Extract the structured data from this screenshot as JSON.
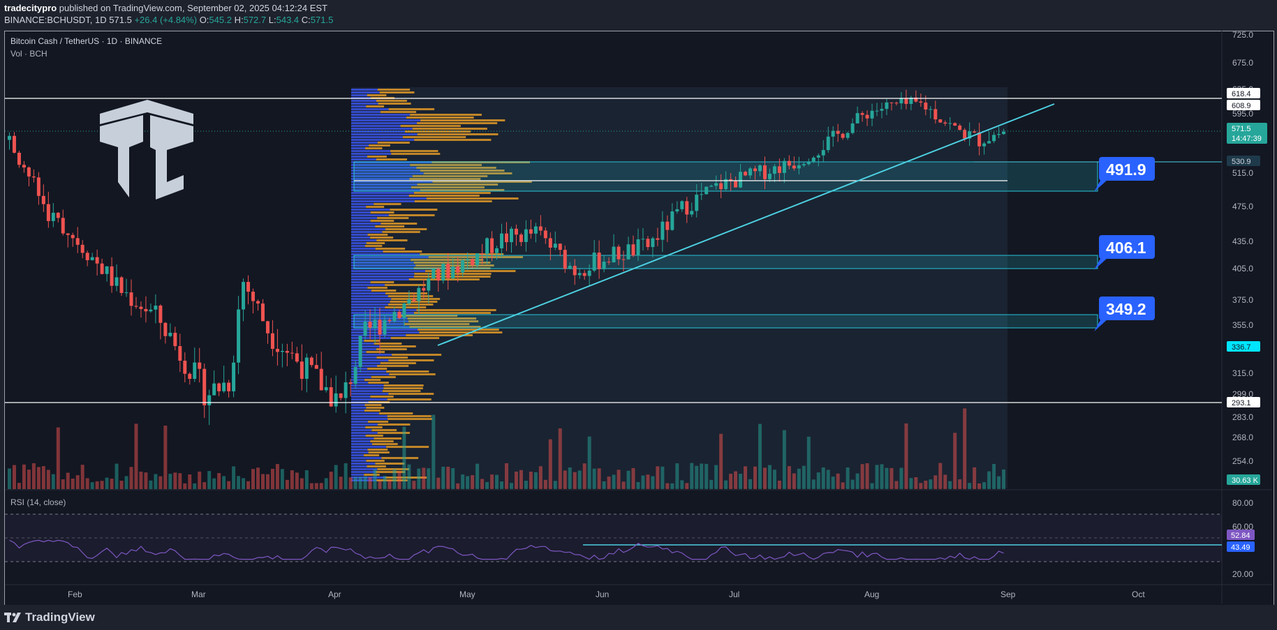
{
  "header": {
    "author": "tradecitypro",
    "published_text": " published on TradingView.com, September 02, 2025 04:12:24 EST",
    "symbol": "BINANCE:BCHUSDT, 1D",
    "last": "571.5",
    "change": "+26.4 (+4.84%)",
    "o_label": "O:",
    "o_value": "545.2",
    "h_label": "H:",
    "h_value": "572.7",
    "l_label": "L:",
    "l_value": "543.4",
    "c_label": "C:",
    "c_value": "571.5"
  },
  "legend": {
    "title": "Bitcoin Cash / TetherUS · 1D · BINANCE",
    "volume": "Vol · BCH",
    "rsi": "RSI (14, close)"
  },
  "price_axis": {
    "ticks": [
      "725.0",
      "675.0",
      "635.0",
      "595.0",
      "515.0",
      "475.0",
      "435.0",
      "405.0",
      "375.0",
      "355.0",
      "315.0",
      "299.0",
      "283.0",
      "268.0",
      "254.0"
    ],
    "tags": [
      {
        "label": "618.4",
        "bg": "#ffffff",
        "fg": "#131722"
      },
      {
        "label": "608.9",
        "bg": "#ffffff",
        "fg": "#131722"
      },
      {
        "label": "571.5",
        "bg": "#26a69a",
        "fg": "#ffffff",
        "sub": "14:47:39"
      },
      {
        "label": "530.9",
        "bg": "#1e3a4a",
        "fg": "#d1d4dc"
      },
      {
        "label": "336.7",
        "bg": "#00e5ff",
        "fg": "#131722"
      },
      {
        "label": "293.1",
        "bg": "#ffffff",
        "fg": "#131722"
      },
      {
        "label": "30.63 K",
        "bg": "#26a69a",
        "fg": "#ffffff"
      }
    ]
  },
  "rsi_axis": {
    "ticks": [
      "80.00",
      "60.00",
      "20.00"
    ],
    "tags": [
      {
        "label": "52.84",
        "bg": "#7e57c2",
        "fg": "#ffffff"
      },
      {
        "label": "43.49",
        "bg": "#2962ff",
        "fg": "#ffffff"
      }
    ]
  },
  "time_axis": [
    "Feb",
    "Mar",
    "Apr",
    "May",
    "Jun",
    "Jul",
    "Aug",
    "Sep",
    "Oct"
  ],
  "callouts": [
    "491.9",
    "406.1",
    "349.2"
  ],
  "footer": {
    "brand": "TradingView"
  },
  "colors": {
    "up": "#26a69a",
    "down": "#ef5350",
    "zone": "#26c6da",
    "trendline": "#4dd0e1",
    "callout": "#2962ff",
    "rsi": "#7e57c2"
  },
  "chart_data": {
    "type": "candlestick",
    "series_name": "Bitcoin Cash / TetherUS",
    "levels": [
      618.4,
      293.1
    ],
    "zones": [
      {
        "label": "491.9",
        "top": 530.9,
        "bottom": 491.9
      },
      {
        "label": "406.1",
        "top": 421,
        "bottom": 406.1
      },
      {
        "label": "349.2",
        "top": 362,
        "bottom": 349.2
      }
    ],
    "ohlc_sample": [
      [
        545,
        520,
        560,
        510
      ],
      [
        515,
        480,
        525,
        470
      ],
      [
        478,
        470,
        490,
        455
      ],
      [
        468,
        430,
        475,
        420
      ],
      [
        430,
        360,
        440,
        350
      ],
      [
        360,
        350,
        372,
        340
      ],
      [
        350,
        345,
        362,
        330
      ],
      [
        345,
        335,
        355,
        325
      ],
      [
        335,
        320,
        345,
        300
      ],
      [
        320,
        300,
        330,
        290
      ],
      [
        300,
        302,
        315,
        288
      ],
      [
        302,
        340,
        352,
        296
      ],
      [
        340,
        395,
        410,
        330
      ],
      [
        395,
        385,
        405,
        375
      ],
      [
        385,
        370,
        395,
        360
      ],
      [
        370,
        355,
        380,
        345
      ],
      [
        355,
        348,
        366,
        340
      ],
      [
        348,
        335,
        358,
        325
      ],
      [
        335,
        310,
        340,
        300
      ],
      [
        310,
        300,
        318,
        285
      ],
      [
        300,
        330,
        340,
        292
      ],
      [
        330,
        340,
        352,
        322
      ],
      [
        340,
        352,
        362,
        332
      ],
      [
        352,
        365,
        380,
        345
      ],
      [
        365,
        372,
        390,
        358
      ],
      [
        372,
        395,
        408,
        365
      ],
      [
        395,
        430,
        442,
        388
      ],
      [
        430,
        420,
        438,
        405
      ],
      [
        420,
        408,
        428,
        398
      ],
      [
        408,
        400,
        415,
        390
      ],
      [
        400,
        440,
        460,
        398
      ],
      [
        440,
        425,
        445,
        415
      ],
      [
        425,
        412,
        430,
        405
      ],
      [
        412,
        400,
        418,
        390
      ],
      [
        400,
        392,
        406,
        384
      ],
      [
        392,
        420,
        432,
        388
      ],
      [
        420,
        445,
        458,
        415
      ],
      [
        445,
        470,
        478,
        440
      ],
      [
        470,
        482,
        492,
        462
      ],
      [
        482,
        500,
        510,
        475
      ],
      [
        500,
        490,
        505,
        480
      ],
      [
        490,
        508,
        520,
        485
      ],
      [
        508,
        505,
        515,
        495
      ],
      [
        505,
        512,
        522,
        500
      ],
      [
        512,
        520,
        530,
        505
      ],
      [
        520,
        530,
        545,
        512
      ],
      [
        530,
        560,
        575,
        525
      ],
      [
        560,
        590,
        605,
        555
      ],
      [
        590,
        580,
        600,
        565
      ],
      [
        580,
        560,
        585,
        548
      ],
      [
        560,
        575,
        590,
        552
      ],
      [
        575,
        585,
        595,
        565
      ],
      [
        585,
        600,
        625,
        578
      ],
      [
        600,
        590,
        608,
        575
      ],
      [
        590,
        570,
        595,
        560
      ],
      [
        570,
        580,
        600,
        568
      ],
      [
        580,
        560,
        585,
        548
      ],
      [
        560,
        545,
        565,
        535
      ],
      [
        545,
        560,
        565,
        540
      ],
      [
        545,
        571.5,
        572.7,
        543.4
      ]
    ],
    "volume_last": "30.63K",
    "rsi": {
      "last": 52.84,
      "line_level": 43.49,
      "upper": 70,
      "lower": 30
    }
  }
}
